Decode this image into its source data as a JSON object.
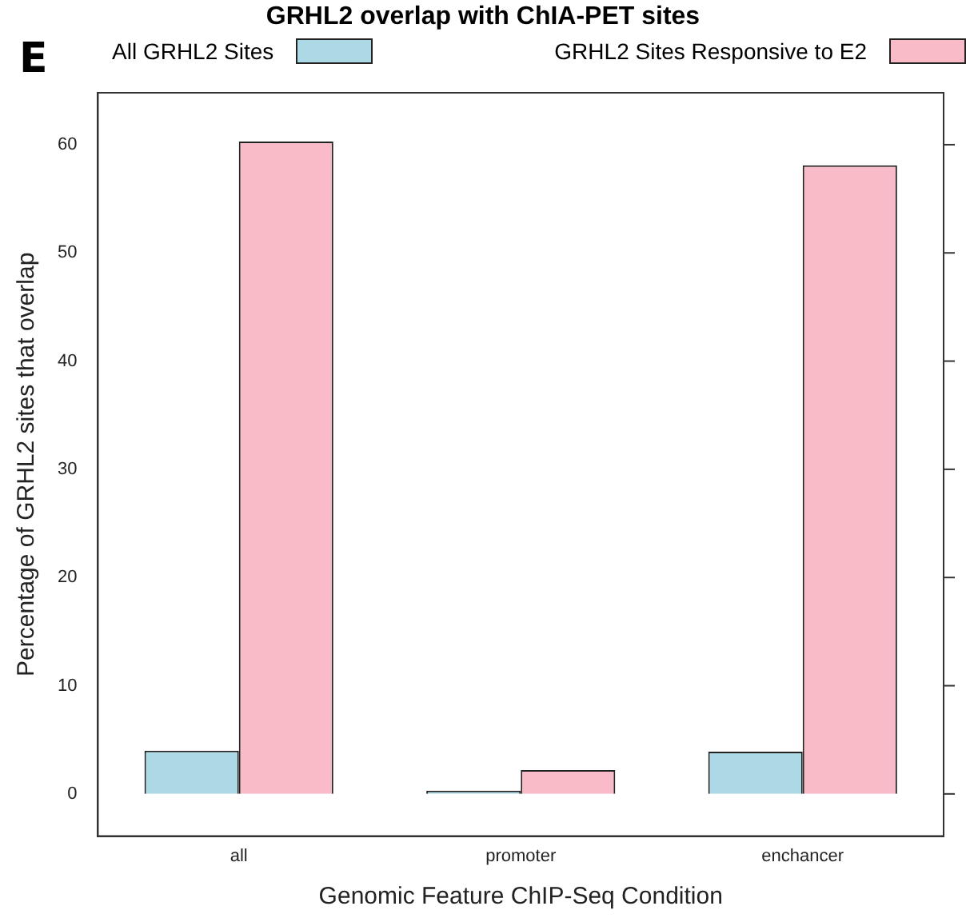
{
  "chart_data": {
    "type": "bar",
    "title": "GRHL2 overlap with ChIA-PET sites",
    "xlabel": "Genomic Feature ChIP-Seq Condition",
    "ylabel": "Percentage of GRHL2 sites that overlap",
    "annotations": [
      "E"
    ],
    "categories": [
      "all",
      "promoter",
      "enchancer"
    ],
    "series": [
      {
        "name": "All GRHL2 Sites",
        "color": "#add8e6",
        "values": [
          4.0,
          0.3,
          3.9
        ]
      },
      {
        "name": "GRHL2 Sites Responsive to E2",
        "color": "#f9bbc8",
        "values": [
          60.3,
          2.2,
          58.1
        ]
      }
    ],
    "ylim": [
      -3.9,
      64.8
    ],
    "yticks": [
      0,
      10,
      20,
      30,
      40,
      50,
      60
    ],
    "grid": false,
    "legend": "top"
  }
}
